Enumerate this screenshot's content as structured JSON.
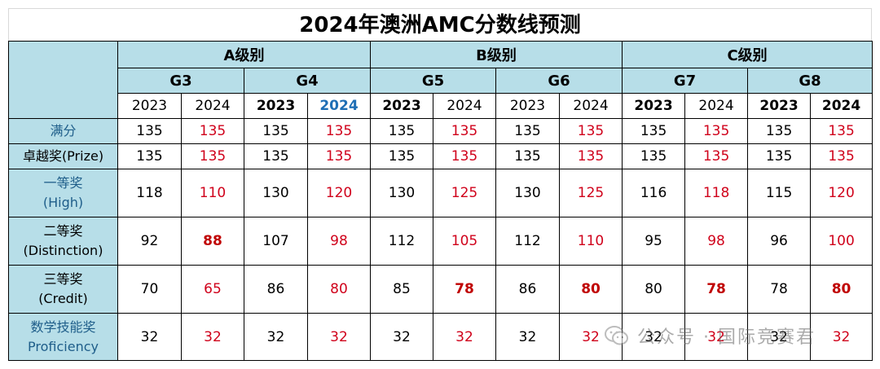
{
  "title": "2024年澳洲AMC分数线预测",
  "levels": [
    {
      "label": "A级别",
      "grades": [
        "G3",
        "G4"
      ]
    },
    {
      "label": "B级别",
      "grades": [
        "G5",
        "G6"
      ]
    },
    {
      "label": "C级别",
      "grades": [
        "G7",
        "G8"
      ]
    }
  ],
  "grades": [
    "G3",
    "G4",
    "G5",
    "G6",
    "G7",
    "G8"
  ],
  "years": [
    "2023",
    "2024",
    "2023",
    "2024",
    "2023",
    "2024",
    "2023",
    "2024",
    "2023",
    "2024",
    "2023",
    "2024"
  ],
  "rows": [
    {
      "label": "满分",
      "values": [
        "135",
        "135",
        "135",
        "135",
        "135",
        "135",
        "135",
        "135",
        "135",
        "135",
        "135",
        "135"
      ]
    },
    {
      "label": "卓越奖(Prize)",
      "values": [
        "135",
        "135",
        "135",
        "135",
        "135",
        "135",
        "135",
        "135",
        "135",
        "135",
        "135",
        "135"
      ]
    },
    {
      "label": "一等奖",
      "label2": "(High)",
      "values": [
        "118",
        "110",
        "130",
        "120",
        "130",
        "125",
        "130",
        "125",
        "116",
        "118",
        "115",
        "120"
      ]
    },
    {
      "label": "二等奖",
      "label2": "(Distinction)",
      "values": [
        "92",
        "88",
        "107",
        "98",
        "112",
        "105",
        "112",
        "110",
        "95",
        "98",
        "96",
        "100"
      ]
    },
    {
      "label": "三等奖",
      "label2": "(Credit)",
      "values": [
        "70",
        "65",
        "86",
        "80",
        "85",
        "78",
        "86",
        "80",
        "80",
        "78",
        "78",
        "80"
      ]
    },
    {
      "label": "数学技能奖",
      "label2": "Proficiency",
      "values": [
        "32",
        "32",
        "32",
        "32",
        "32",
        "32",
        "32",
        "32",
        "32",
        "32",
        "32",
        "32"
      ]
    }
  ],
  "watermark": "公众号 · 国际竞赛君",
  "colors": {
    "header_bg": "#b7dee8",
    "red": "#d0021b",
    "blue": "#1f6fb5"
  }
}
